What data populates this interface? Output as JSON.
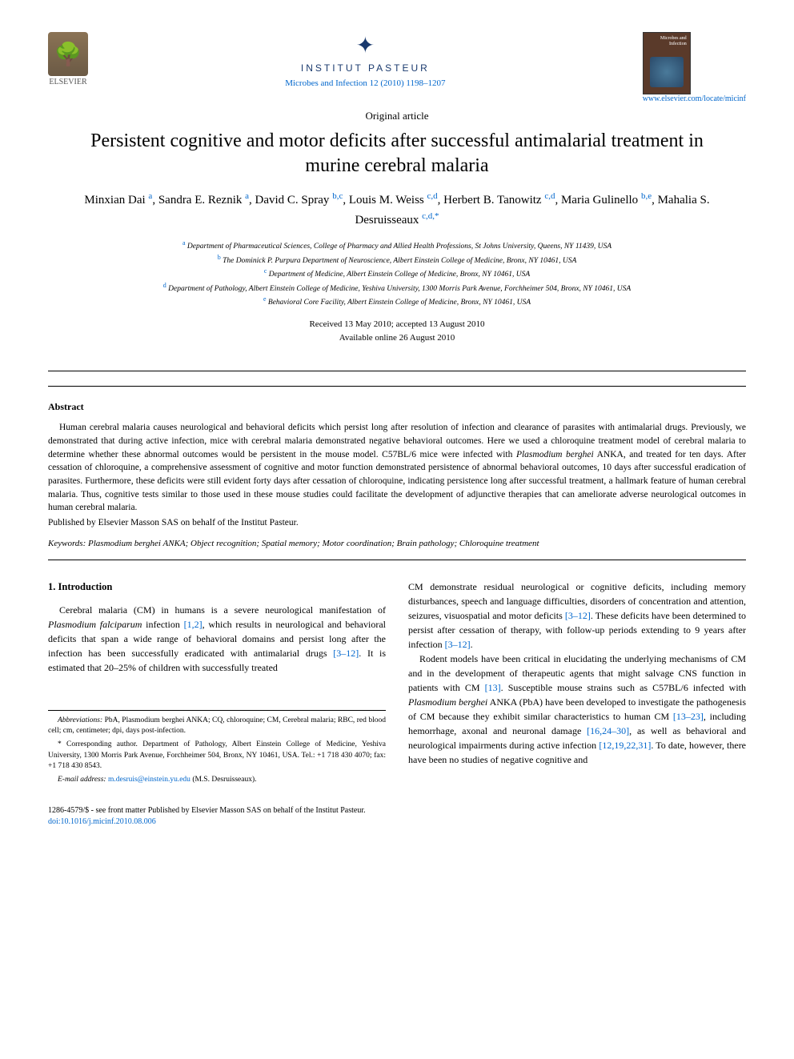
{
  "header": {
    "elsevier_label": "ELSEVIER",
    "pasteur_label": "INSTITUT PASTEUR",
    "journal_cover_title": "Microbes and\nInfection",
    "citation": "Microbes and Infection 12 (2010) 1198–1207",
    "url": "www.elsevier.com/locate/micinf"
  },
  "article": {
    "type": "Original article",
    "title": "Persistent cognitive and motor deficits after successful antimalarial treatment in murine cerebral malaria",
    "authors_html": "Minxian Dai <sup class='author-ref'>a</sup>, Sandra E. Reznik <sup class='author-ref'>a</sup>, David C. Spray <sup class='author-ref'>b,c</sup>, Louis M. Weiss <sup class='author-ref'>c,d</sup>, Herbert B. Tanowitz <sup class='author-ref'>c,d</sup>, Maria Gulinello <sup class='author-ref'>b,e</sup>, Mahalia S. Desruisseaux <sup class='author-ref'>c,d,*</sup>",
    "affiliations": [
      {
        "label": "a",
        "text": "Department of Pharmaceutical Sciences, College of Pharmacy and Allied Health Professions, St Johns University, Queens, NY 11439, USA"
      },
      {
        "label": "b",
        "text": "The Dominick P. Purpura Department of Neuroscience, Albert Einstein College of Medicine, Bronx, NY 10461, USA"
      },
      {
        "label": "c",
        "text": "Department of Medicine, Albert Einstein College of Medicine, Bronx, NY 10461, USA"
      },
      {
        "label": "d",
        "text": "Department of Pathology, Albert Einstein College of Medicine, Yeshiva University, 1300 Morris Park Avenue, Forchheimer 504, Bronx, NY 10461, USA"
      },
      {
        "label": "e",
        "text": "Behavioral Core Facility, Albert Einstein College of Medicine, Bronx, NY 10461, USA"
      }
    ],
    "received": "Received 13 May 2010; accepted 13 August 2010",
    "available": "Available online 26 August 2010"
  },
  "abstract": {
    "heading": "Abstract",
    "text": "Human cerebral malaria causes neurological and behavioral deficits which persist long after resolution of infection and clearance of parasites with antimalarial drugs. Previously, we demonstrated that during active infection, mice with cerebral malaria demonstrated negative behavioral outcomes. Here we used a chloroquine treatment model of cerebral malaria to determine whether these abnormal outcomes would be persistent in the mouse model. C57BL/6 mice were infected with <em>Plasmodium berghei</em> ANKA, and treated for ten days. After cessation of chloroquine, a comprehensive assessment of cognitive and motor function demonstrated persistence of abnormal behavioral outcomes, 10 days after successful eradication of parasites. Furthermore, these deficits were still evident forty days after cessation of chloroquine, indicating persistence long after successful treatment, a hallmark feature of human cerebral malaria. Thus, cognitive tests similar to those used in these mouse studies could facilitate the development of adjunctive therapies that can ameliorate adverse neurological outcomes in human cerebral malaria.",
    "copyright": "Published by Elsevier Masson SAS on behalf of the Institut Pasteur.",
    "keywords_label": "Keywords:",
    "keywords": " Plasmodium berghei ANKA; Object recognition; Spatial memory; Motor coordination; Brain pathology; Chloroquine treatment"
  },
  "body": {
    "intro_heading": "1. Introduction",
    "col1_p1": "Cerebral malaria (CM) in humans is a severe neurological manifestation of <em>Plasmodium falciparum</em> infection <span class='ref-link'>[1,2]</span>, which results in neurological and behavioral deficits that span a wide range of behavioral domains and persist long after the infection has been successfully eradicated with antimalarial drugs <span class='ref-link'>[3–12]</span>. It is estimated that 20–25% of children with successfully treated",
    "col2_p1": "CM demonstrate residual neurological or cognitive deficits, including memory disturbances, speech and language difficulties, disorders of concentration and attention, seizures, visuospatial and motor deficits <span class='ref-link'>[3–12]</span>. These deficits have been determined to persist after cessation of therapy, with follow-up periods extending to 9 years after infection <span class='ref-link'>[3–12]</span>.",
    "col2_p2": "Rodent models have been critical in elucidating the underlying mechanisms of CM and in the development of therapeutic agents that might salvage CNS function in patients with CM <span class='ref-link'>[13]</span>. Susceptible mouse strains such as C57BL/6 infected with <em>Plasmodium berghei</em> ANKA (PbA) have been developed to investigate the pathogenesis of CM because they exhibit similar characteristics to human CM <span class='ref-link'>[13–23]</span>, including hemorrhage, axonal and neuronal damage <span class='ref-link'>[16,24–30]</span>, as well as behavioral and neurological impairments during active infection <span class='ref-link'>[12,19,22,31]</span>. To date, however, there have been no studies of negative cognitive and"
  },
  "footnotes": {
    "abbrev_label": "Abbreviations:",
    "abbrev_text": " PbA, Plasmodium berghei ANKA; CQ, chloroquine; CM, Cerebral malaria; RBC, red blood cell; cm, centimeter; dpi, days post-infection.",
    "corresp_label": "* ",
    "corresp_text": "Corresponding author. Department of Pathology, Albert Einstein College of Medicine, Yeshiva University, 1300 Morris Park Avenue, Forchheimer 504, Bronx, NY 10461, USA. Tel.: +1 718 430 4070; fax: +1 718 430 8543.",
    "email_label": "E-mail address:",
    "email": " m.desruis@einstein.yu.edu",
    "email_suffix": " (M.S. Desruisseaux)."
  },
  "footer": {
    "line1": "1286-4579/$ - see front matter Published by Elsevier Masson SAS on behalf of the Institut Pasteur.",
    "doi": "doi:10.1016/j.micinf.2010.08.006"
  },
  "colors": {
    "link": "#0066cc",
    "pasteur": "#1a3a6e",
    "rule": "#000000"
  }
}
